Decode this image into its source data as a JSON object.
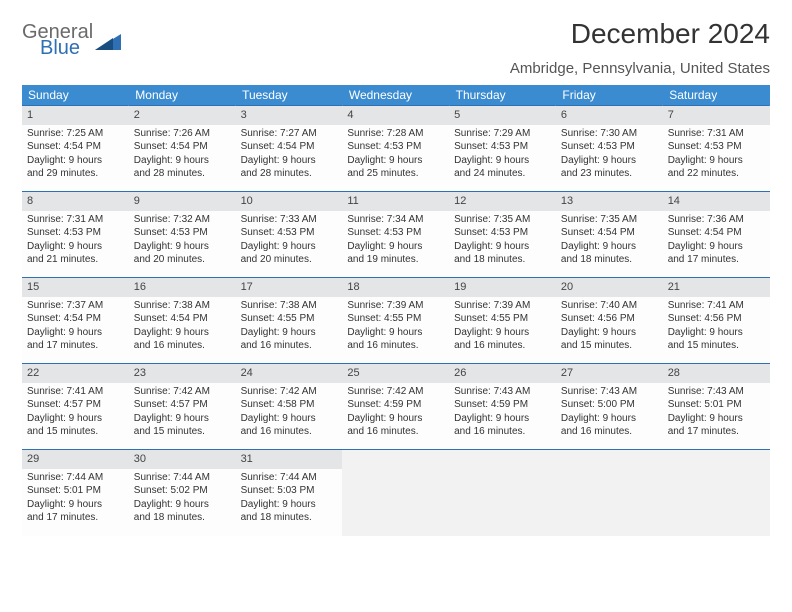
{
  "logo": {
    "general": "General",
    "blue": "Blue"
  },
  "title": "December 2024",
  "subtitle": "Ambridge, Pennsylvania, United States",
  "colors": {
    "header_bg": "#3b8bd0",
    "header_text": "#ffffff",
    "row_border": "#2f6fb3",
    "daynum_bg": "#e4e5e6",
    "logo_gray": "#6a6a6a",
    "logo_blue": "#2f6fb3"
  },
  "weekdays": [
    "Sunday",
    "Monday",
    "Tuesday",
    "Wednesday",
    "Thursday",
    "Friday",
    "Saturday"
  ],
  "weeks": [
    [
      {
        "d": "1",
        "sr": "Sunrise: 7:25 AM",
        "ss": "Sunset: 4:54 PM",
        "dl1": "Daylight: 9 hours",
        "dl2": "and 29 minutes."
      },
      {
        "d": "2",
        "sr": "Sunrise: 7:26 AM",
        "ss": "Sunset: 4:54 PM",
        "dl1": "Daylight: 9 hours",
        "dl2": "and 28 minutes."
      },
      {
        "d": "3",
        "sr": "Sunrise: 7:27 AM",
        "ss": "Sunset: 4:54 PM",
        "dl1": "Daylight: 9 hours",
        "dl2": "and 28 minutes."
      },
      {
        "d": "4",
        "sr": "Sunrise: 7:28 AM",
        "ss": "Sunset: 4:53 PM",
        "dl1": "Daylight: 9 hours",
        "dl2": "and 25 minutes."
      },
      {
        "d": "5",
        "sr": "Sunrise: 7:29 AM",
        "ss": "Sunset: 4:53 PM",
        "dl1": "Daylight: 9 hours",
        "dl2": "and 24 minutes."
      },
      {
        "d": "6",
        "sr": "Sunrise: 7:30 AM",
        "ss": "Sunset: 4:53 PM",
        "dl1": "Daylight: 9 hours",
        "dl2": "and 23 minutes."
      },
      {
        "d": "7",
        "sr": "Sunrise: 7:31 AM",
        "ss": "Sunset: 4:53 PM",
        "dl1": "Daylight: 9 hours",
        "dl2": "and 22 minutes."
      }
    ],
    [
      {
        "d": "8",
        "sr": "Sunrise: 7:31 AM",
        "ss": "Sunset: 4:53 PM",
        "dl1": "Daylight: 9 hours",
        "dl2": "and 21 minutes."
      },
      {
        "d": "9",
        "sr": "Sunrise: 7:32 AM",
        "ss": "Sunset: 4:53 PM",
        "dl1": "Daylight: 9 hours",
        "dl2": "and 20 minutes."
      },
      {
        "d": "10",
        "sr": "Sunrise: 7:33 AM",
        "ss": "Sunset: 4:53 PM",
        "dl1": "Daylight: 9 hours",
        "dl2": "and 20 minutes."
      },
      {
        "d": "11",
        "sr": "Sunrise: 7:34 AM",
        "ss": "Sunset: 4:53 PM",
        "dl1": "Daylight: 9 hours",
        "dl2": "and 19 minutes."
      },
      {
        "d": "12",
        "sr": "Sunrise: 7:35 AM",
        "ss": "Sunset: 4:53 PM",
        "dl1": "Daylight: 9 hours",
        "dl2": "and 18 minutes."
      },
      {
        "d": "13",
        "sr": "Sunrise: 7:35 AM",
        "ss": "Sunset: 4:54 PM",
        "dl1": "Daylight: 9 hours",
        "dl2": "and 18 minutes."
      },
      {
        "d": "14",
        "sr": "Sunrise: 7:36 AM",
        "ss": "Sunset: 4:54 PM",
        "dl1": "Daylight: 9 hours",
        "dl2": "and 17 minutes."
      }
    ],
    [
      {
        "d": "15",
        "sr": "Sunrise: 7:37 AM",
        "ss": "Sunset: 4:54 PM",
        "dl1": "Daylight: 9 hours",
        "dl2": "and 17 minutes."
      },
      {
        "d": "16",
        "sr": "Sunrise: 7:38 AM",
        "ss": "Sunset: 4:54 PM",
        "dl1": "Daylight: 9 hours",
        "dl2": "and 16 minutes."
      },
      {
        "d": "17",
        "sr": "Sunrise: 7:38 AM",
        "ss": "Sunset: 4:55 PM",
        "dl1": "Daylight: 9 hours",
        "dl2": "and 16 minutes."
      },
      {
        "d": "18",
        "sr": "Sunrise: 7:39 AM",
        "ss": "Sunset: 4:55 PM",
        "dl1": "Daylight: 9 hours",
        "dl2": "and 16 minutes."
      },
      {
        "d": "19",
        "sr": "Sunrise: 7:39 AM",
        "ss": "Sunset: 4:55 PM",
        "dl1": "Daylight: 9 hours",
        "dl2": "and 16 minutes."
      },
      {
        "d": "20",
        "sr": "Sunrise: 7:40 AM",
        "ss": "Sunset: 4:56 PM",
        "dl1": "Daylight: 9 hours",
        "dl2": "and 15 minutes."
      },
      {
        "d": "21",
        "sr": "Sunrise: 7:41 AM",
        "ss": "Sunset: 4:56 PM",
        "dl1": "Daylight: 9 hours",
        "dl2": "and 15 minutes."
      }
    ],
    [
      {
        "d": "22",
        "sr": "Sunrise: 7:41 AM",
        "ss": "Sunset: 4:57 PM",
        "dl1": "Daylight: 9 hours",
        "dl2": "and 15 minutes."
      },
      {
        "d": "23",
        "sr": "Sunrise: 7:42 AM",
        "ss": "Sunset: 4:57 PM",
        "dl1": "Daylight: 9 hours",
        "dl2": "and 15 minutes."
      },
      {
        "d": "24",
        "sr": "Sunrise: 7:42 AM",
        "ss": "Sunset: 4:58 PM",
        "dl1": "Daylight: 9 hours",
        "dl2": "and 16 minutes."
      },
      {
        "d": "25",
        "sr": "Sunrise: 7:42 AM",
        "ss": "Sunset: 4:59 PM",
        "dl1": "Daylight: 9 hours",
        "dl2": "and 16 minutes."
      },
      {
        "d": "26",
        "sr": "Sunrise: 7:43 AM",
        "ss": "Sunset: 4:59 PM",
        "dl1": "Daylight: 9 hours",
        "dl2": "and 16 minutes."
      },
      {
        "d": "27",
        "sr": "Sunrise: 7:43 AM",
        "ss": "Sunset: 5:00 PM",
        "dl1": "Daylight: 9 hours",
        "dl2": "and 16 minutes."
      },
      {
        "d": "28",
        "sr": "Sunrise: 7:43 AM",
        "ss": "Sunset: 5:01 PM",
        "dl1": "Daylight: 9 hours",
        "dl2": "and 17 minutes."
      }
    ],
    [
      {
        "d": "29",
        "sr": "Sunrise: 7:44 AM",
        "ss": "Sunset: 5:01 PM",
        "dl1": "Daylight: 9 hours",
        "dl2": "and 17 minutes."
      },
      {
        "d": "30",
        "sr": "Sunrise: 7:44 AM",
        "ss": "Sunset: 5:02 PM",
        "dl1": "Daylight: 9 hours",
        "dl2": "and 18 minutes."
      },
      {
        "d": "31",
        "sr": "Sunrise: 7:44 AM",
        "ss": "Sunset: 5:03 PM",
        "dl1": "Daylight: 9 hours",
        "dl2": "and 18 minutes."
      },
      null,
      null,
      null,
      null
    ]
  ]
}
